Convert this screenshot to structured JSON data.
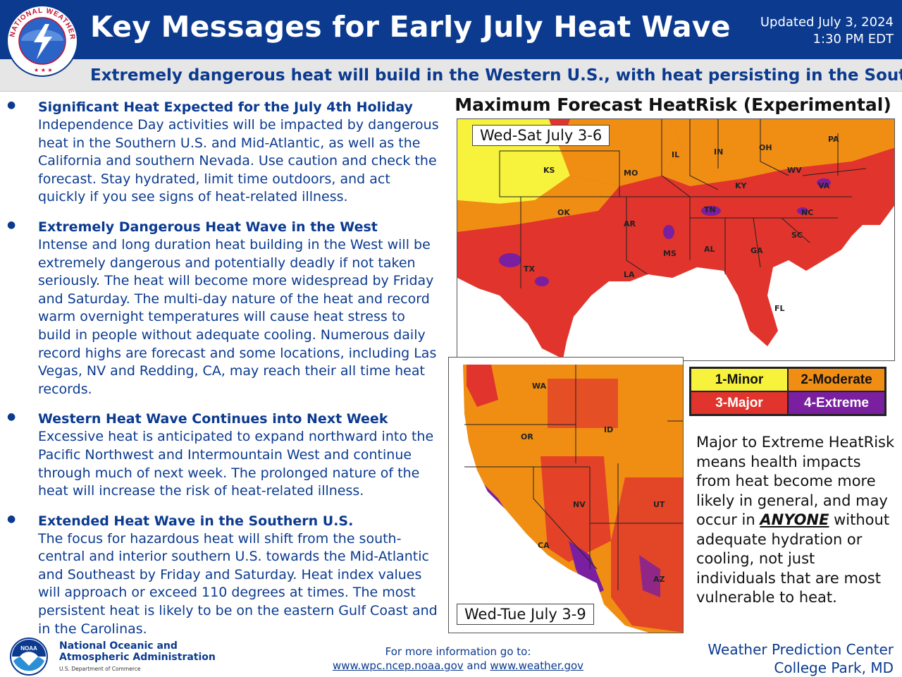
{
  "header": {
    "title": "Key Messages for Early July Heat Wave",
    "updated_line1": "Updated July 3, 2024",
    "updated_line2": "1:30 PM EDT",
    "logo_text": "NATIONAL WEATHER SERVICE"
  },
  "subtitle": "Extremely dangerous heat will build in the Western U.S., with heat persisting in the South",
  "messages": [
    {
      "heading": "Significant Heat Expected for the July 4th Holiday",
      "body": "Independence Day activities will be impacted by dangerous heat in the Southern U.S. and Mid-Atlantic,  as well as the California and southern Nevada. Use caution and check the forecast. Stay hydrated, limit time outdoors, and act quickly if you see signs of heat-related illness."
    },
    {
      "heading": "Extremely Dangerous Heat Wave in the West",
      "body": "Intense and long duration heat building in the West will be extremely dangerous and potentially deadly if not taken seriously. The heat will become more widespread by Friday and Saturday. The multi-day nature of the heat and record warm overnight temperatures will cause heat stress to build in people without adequate cooling. Numerous daily record highs are forecast and some locations, including Las Vegas, NV and Redding, CA, may reach their all time heat records."
    },
    {
      "heading": "Western Heat Wave Continues into Next Week",
      "body": "Excessive heat is anticipated to expand northward into the Pacific Northwest and Intermountain West and continue through much of next week. The prolonged nature of the heat will increase the risk of heat-related illness."
    },
    {
      "heading": "Extended Heat Wave in the Southern U.S.",
      "body": "The focus for hazardous heat will shift from the south-central and interior southern U.S. towards the Mid-Atlantic and Southeast by Friday and Saturday. Heat index values will approach or exceed 110 degrees at times. The most persistent heat is likely to be on the eastern Gulf Coast and in the Carolinas."
    }
  ],
  "map": {
    "title": "Maximum Forecast HeatRisk (Experimental)",
    "panel1_label": "Wed-Sat July 3-6",
    "panel2_label": "Wed-Tue July 3-9",
    "panel1_states": [
      "KS",
      "MO",
      "IL",
      "IN",
      "OH",
      "PA",
      "KY",
      "WV",
      "VA",
      "OK",
      "AR",
      "TN",
      "NC",
      "SC",
      "TX",
      "LA",
      "MS",
      "AL",
      "GA",
      "FL"
    ],
    "panel2_states": [
      "WA",
      "OR",
      "ID",
      "NV",
      "UT",
      "CA",
      "AZ"
    ]
  },
  "legend": {
    "items": [
      {
        "label": "1-Minor",
        "color": "#f7f23c"
      },
      {
        "label": "2-Moderate",
        "color": "#f08e14"
      },
      {
        "label": "3-Major",
        "color": "#e0342c"
      },
      {
        "label": "4-Extreme",
        "color": "#7a1fa0"
      }
    ]
  },
  "note": {
    "before": "Major to Extreme HeatRisk means health impacts from heat become more likely in general, and may occur in ",
    "emphasis": "ANYONE",
    "after": " without adequate hydration or cooling, not just individuals that are most vulnerable to heat."
  },
  "footer": {
    "noaa_line1": "National Oceanic and",
    "noaa_line2": "Atmospheric Administration",
    "noaa_dept": "U.S. Department of Commerce",
    "noaa_logo_text": "NOAA",
    "more_info": "For more information go to:",
    "link1": "www.wpc.ncep.noaa.gov",
    "and_text": " and ",
    "link2": "www.weather.gov",
    "wpc_line1": "Weather Prediction Center",
    "wpc_line2": "College Park, MD"
  }
}
